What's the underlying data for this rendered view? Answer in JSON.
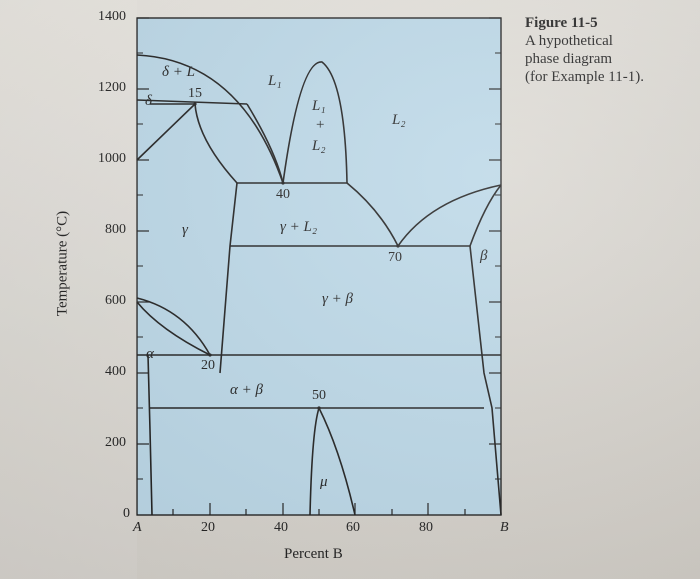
{
  "figure": {
    "number": "Figure 11-5",
    "caption_lines": [
      "A hypothetical",
      "phase diagram",
      "(for Example 11-1)."
    ]
  },
  "axes": {
    "ylabel": "Temperature (°C)",
    "xlabel": "Percent B",
    "y_ticks": [
      "1400",
      "1200",
      "1000",
      "800",
      "600",
      "400",
      "200",
      "0"
    ],
    "x_ticks": [
      "20",
      "40",
      "60",
      "80"
    ],
    "x_end_left": "A",
    "x_end_right": "B"
  },
  "phase_labels": {
    "delta_plus_L": "δ + L",
    "delta": "δ",
    "L1": "L₁",
    "L1_plus_L2_a": "L₁",
    "L1_plus_L2_b": "+",
    "L1_plus_L2_c": "L₂",
    "L2": "L₂",
    "gamma": "γ",
    "gamma_plus_L2": "γ + L₂",
    "gamma_plus_beta": "γ + β",
    "beta": "β",
    "alpha": "α",
    "alpha_plus_beta": "α + β",
    "mu": "μ"
  },
  "point_labels": {
    "p15": "15",
    "p40": "40",
    "p70": "70",
    "p20": "20",
    "p50": "50"
  },
  "colors": {
    "diagram_fill": "#b9d6e6",
    "line": "#1a1a1a"
  }
}
